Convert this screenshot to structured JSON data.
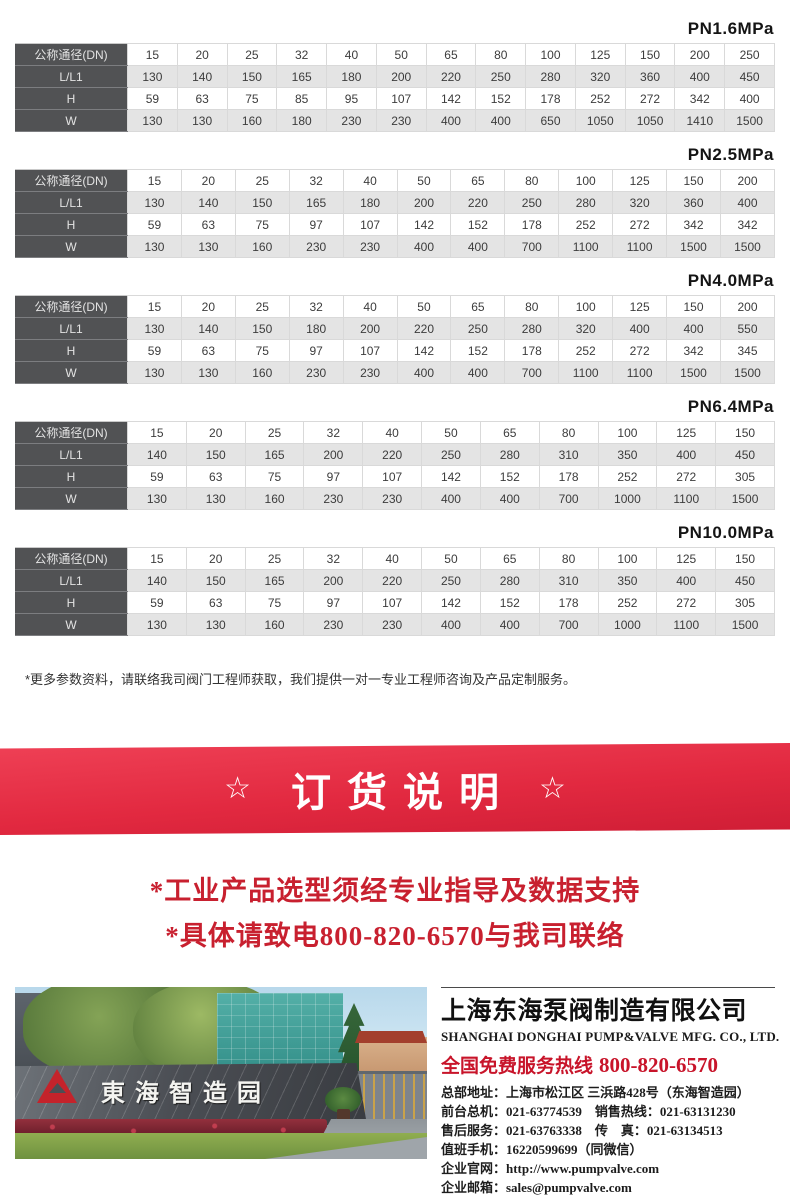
{
  "tables": [
    {
      "title": "PN1.6MPa",
      "header_label": "公称通径(DN)",
      "dn": [
        "15",
        "20",
        "25",
        "32",
        "40",
        "50",
        "65",
        "80",
        "100",
        "125",
        "150",
        "200",
        "250"
      ],
      "rows": [
        {
          "label": "L/L1",
          "values": [
            "130",
            "140",
            "150",
            "165",
            "180",
            "200",
            "220",
            "250",
            "280",
            "320",
            "360",
            "400",
            "450"
          ]
        },
        {
          "label": "H",
          "values": [
            "59",
            "63",
            "75",
            "85",
            "95",
            "107",
            "142",
            "152",
            "178",
            "252",
            "272",
            "342",
            "400"
          ]
        },
        {
          "label": "W",
          "values": [
            "130",
            "130",
            "160",
            "180",
            "230",
            "230",
            "400",
            "400",
            "650",
            "1050",
            "1050",
            "1410",
            "1500"
          ]
        }
      ]
    },
    {
      "title": "PN2.5MPa",
      "header_label": "公称通径(DN)",
      "dn": [
        "15",
        "20",
        "25",
        "32",
        "40",
        "50",
        "65",
        "80",
        "100",
        "125",
        "150",
        "200"
      ],
      "rows": [
        {
          "label": "L/L1",
          "values": [
            "130",
            "140",
            "150",
            "165",
            "180",
            "200",
            "220",
            "250",
            "280",
            "320",
            "360",
            "400"
          ]
        },
        {
          "label": "H",
          "values": [
            "59",
            "63",
            "75",
            "97",
            "107",
            "142",
            "152",
            "178",
            "252",
            "272",
            "342",
            "342"
          ]
        },
        {
          "label": "W",
          "values": [
            "130",
            "130",
            "160",
            "230",
            "230",
            "400",
            "400",
            "700",
            "1100",
            "1100",
            "1500",
            "1500"
          ]
        }
      ]
    },
    {
      "title": "PN4.0MPa",
      "header_label": "公称通径(DN)",
      "dn": [
        "15",
        "20",
        "25",
        "32",
        "40",
        "50",
        "65",
        "80",
        "100",
        "125",
        "150",
        "200"
      ],
      "rows": [
        {
          "label": "L/L1",
          "values": [
            "130",
            "140",
            "150",
            "180",
            "200",
            "220",
            "250",
            "280",
            "320",
            "400",
            "400",
            "550"
          ]
        },
        {
          "label": "H",
          "values": [
            "59",
            "63",
            "75",
            "97",
            "107",
            "142",
            "152",
            "178",
            "252",
            "272",
            "342",
            "345"
          ]
        },
        {
          "label": "W",
          "values": [
            "130",
            "130",
            "160",
            "230",
            "230",
            "400",
            "400",
            "700",
            "1100",
            "1100",
            "1500",
            "1500"
          ]
        }
      ]
    },
    {
      "title": "PN6.4MPa",
      "header_label": "公称通径(DN)",
      "dn": [
        "15",
        "20",
        "25",
        "32",
        "40",
        "50",
        "65",
        "80",
        "100",
        "125",
        "150"
      ],
      "rows": [
        {
          "label": "L/L1",
          "values": [
            "140",
            "150",
            "165",
            "200",
            "220",
            "250",
            "280",
            "310",
            "350",
            "400",
            "450"
          ]
        },
        {
          "label": "H",
          "values": [
            "59",
            "63",
            "75",
            "97",
            "107",
            "142",
            "152",
            "178",
            "252",
            "272",
            "305"
          ]
        },
        {
          "label": "W",
          "values": [
            "130",
            "130",
            "160",
            "230",
            "230",
            "400",
            "400",
            "700",
            "1000",
            "1100",
            "1500"
          ]
        }
      ]
    },
    {
      "title": "PN10.0MPa",
      "header_label": "公称通径(DN)",
      "dn": [
        "15",
        "20",
        "25",
        "32",
        "40",
        "50",
        "65",
        "80",
        "100",
        "125",
        "150"
      ],
      "rows": [
        {
          "label": "L/L1",
          "values": [
            "140",
            "150",
            "165",
            "200",
            "220",
            "250",
            "280",
            "310",
            "350",
            "400",
            "450"
          ]
        },
        {
          "label": "H",
          "values": [
            "59",
            "63",
            "75",
            "97",
            "107",
            "142",
            "152",
            "178",
            "252",
            "272",
            "305"
          ]
        },
        {
          "label": "W",
          "values": [
            "130",
            "130",
            "160",
            "230",
            "230",
            "400",
            "400",
            "700",
            "1000",
            "1100",
            "1500"
          ]
        }
      ]
    }
  ],
  "note": "*更多参数资料，请联络我司阀门工程师获取，我们提供一对一专业工程师咨询及产品定制服务。",
  "banner": {
    "star": "☆",
    "title": "订货说明",
    "bg_color": "#e22940"
  },
  "warnings": [
    "*工业产品选型须经专业指导及数据支持",
    "*具体请致电800-820-6570与我司联络"
  ],
  "warning_color": "#c8202f",
  "photo": {
    "sign_text": "東海智造园"
  },
  "company": {
    "name_cn": "上海东海泵阀制造有限公司",
    "name_en": "SHANGHAI DONGHAI PUMP&VALVE MFG. CO., LTD.",
    "hotline_label": "全国免费服务热线",
    "hotline_number": "800-820-6570",
    "hotline_color": "#c8142a",
    "lines": [
      "总部地址：上海市松江区 三浜路428号（东海智造园）",
      "前台总机：021-63774539　销售热线：021-63131230",
      "售后服务：021-63763338　传　真：021-63134513",
      "值班手机：16220599699（同微信）",
      "企业官网：http://www.pumpvalve.com",
      "企业邮箱：sales@pumpvalve.com"
    ]
  }
}
